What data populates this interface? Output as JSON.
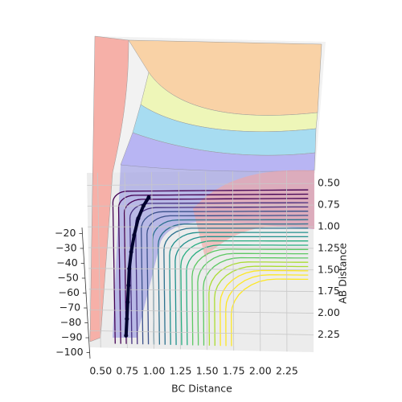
{
  "chart_data": {
    "type": "surface",
    "xlabel": "BC Distance",
    "ylabel": "AB Distance",
    "xlim": [
      0.4,
      2.5
    ],
    "ylim": [
      0.35,
      2.45
    ],
    "zlim": [
      -104,
      -16
    ],
    "xticks": [
      {
        "value": 0.5,
        "label": "0.50"
      },
      {
        "value": 0.75,
        "label": "0.75"
      },
      {
        "value": 1.0,
        "label": "1.00"
      },
      {
        "value": 1.25,
        "label": "1.25"
      },
      {
        "value": 1.5,
        "label": "1.50"
      },
      {
        "value": 1.75,
        "label": "1.75"
      },
      {
        "value": 2.0,
        "label": "2.00"
      },
      {
        "value": 2.25,
        "label": "2.25"
      }
    ],
    "yticks": [
      {
        "value": 0.5,
        "label": "0.50"
      },
      {
        "value": 0.75,
        "label": "0.75"
      },
      {
        "value": 1.0,
        "label": "1.00"
      },
      {
        "value": 1.25,
        "label": "1.25"
      },
      {
        "value": 1.5,
        "label": "1.50"
      },
      {
        "value": 1.75,
        "label": "1.75"
      },
      {
        "value": 2.0,
        "label": "2.00"
      },
      {
        "value": 2.25,
        "label": "2.25"
      }
    ],
    "zticks": [
      {
        "value": -20,
        "label": "−20"
      },
      {
        "value": -30,
        "label": "−30"
      },
      {
        "value": -40,
        "label": "−40"
      },
      {
        "value": -50,
        "label": "−50"
      },
      {
        "value": -60,
        "label": "−60"
      },
      {
        "value": -70,
        "label": "−70"
      },
      {
        "value": -80,
        "label": "−80"
      },
      {
        "value": -90,
        "label": "−90"
      },
      {
        "value": -100,
        "label": "−100"
      }
    ],
    "grid": true,
    "trajectory": {
      "color": "#00002e",
      "x": [
        0.74,
        0.75,
        0.76,
        0.77,
        0.78,
        0.8,
        0.83,
        0.87,
        0.92,
        0.97
      ],
      "y": [
        2.3,
        2.1,
        1.9,
        1.7,
        1.5,
        1.3,
        1.1,
        0.9,
        0.75,
        0.65
      ]
    }
  }
}
